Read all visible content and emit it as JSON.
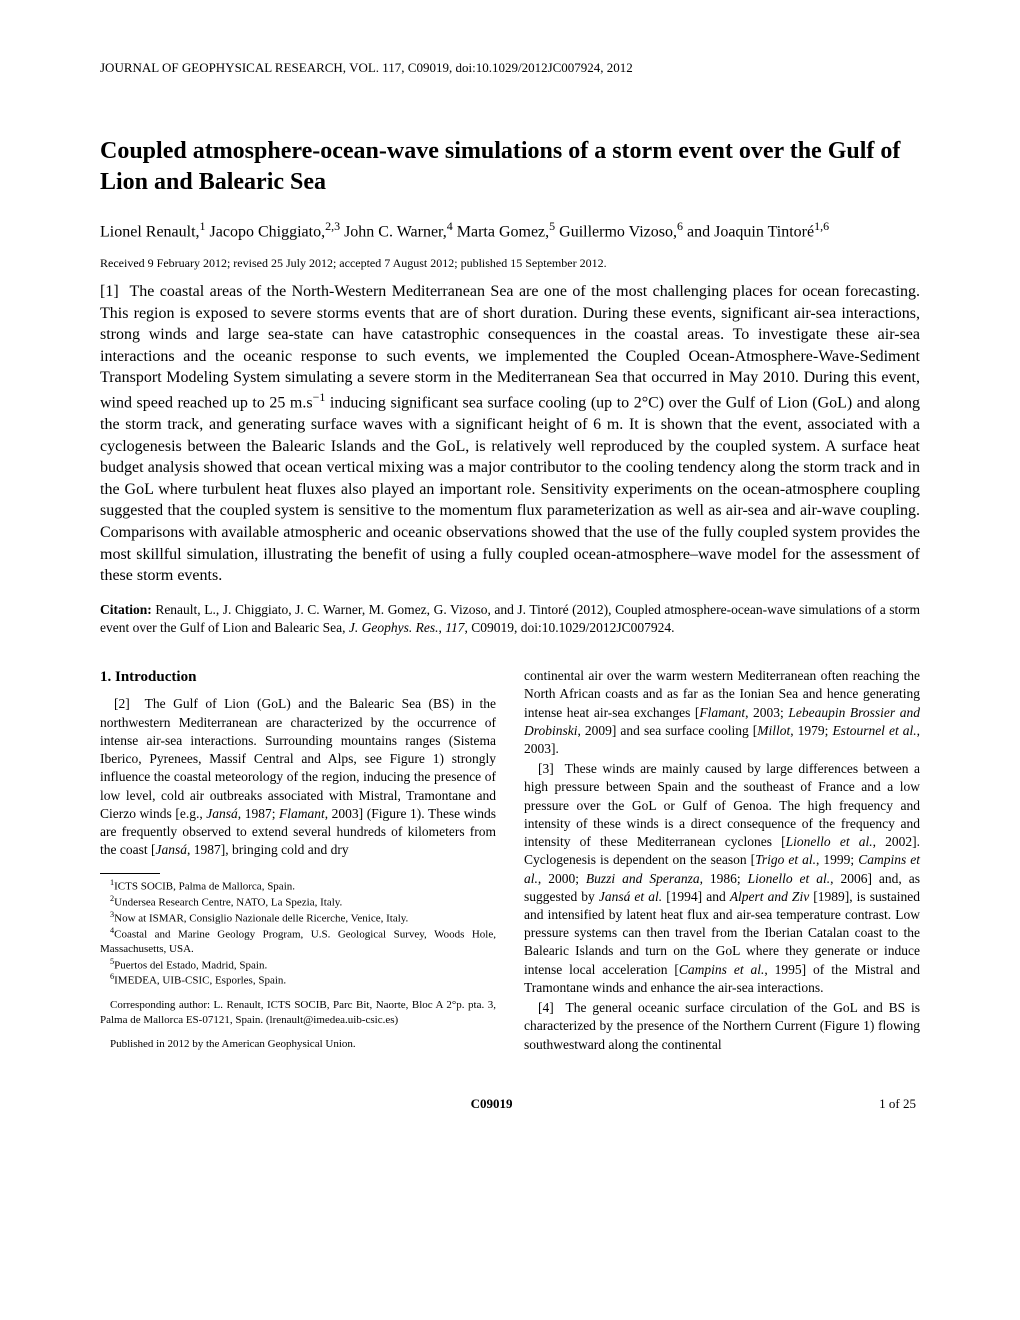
{
  "running_header": "JOURNAL OF GEOPHYSICAL RESEARCH, VOL. 117, C09019, doi:10.1029/2012JC007924, 2012",
  "title": "Coupled atmosphere-ocean-wave simulations of a storm event over the Gulf of Lion and Balearic Sea",
  "authors_html": "Lionel Renault,<sup>1</sup> Jacopo Chiggiato,<sup>2,3</sup> John C. Warner,<sup>4</sup> Marta Gomez,<sup>5</sup> Guillermo Vizoso,<sup>6</sup> and Joaquin Tintoré<sup>1,6</sup>",
  "dates": "Received 9 February 2012; revised 25 July 2012; accepted 7 August 2012; published 15 September 2012.",
  "abstract_html": "[1]&nbsp;&nbsp;The coastal areas of the North-Western Mediterranean Sea are one of the most challenging places for ocean forecasting. This region is exposed to severe storms events that are of short duration. During these events, significant air-sea interactions, strong winds and large sea-state can have catastrophic consequences in the coastal areas. To investigate these air-sea interactions and the oceanic response to such events, we implemented the Coupled Ocean-Atmosphere-Wave-Sediment Transport Modeling System simulating a severe storm in the Mediterranean Sea that occurred in May 2010. During this event, wind speed reached up to 25 m.s<sup>−1</sup> inducing significant sea surface cooling (up to 2°C) over the Gulf of Lion (GoL) and along the storm track, and generating surface waves with a significant height of 6 m. It is shown that the event, associated with a cyclogenesis between the Balearic Islands and the GoL, is relatively well reproduced by the coupled system. A surface heat budget analysis showed that ocean vertical mixing was a major contributor to the cooling tendency along the storm track and in the GoL where turbulent heat fluxes also played an important role. Sensitivity experiments on the ocean-atmosphere coupling suggested that the coupled system is sensitive to the momentum flux parameterization as well as air-sea and air-wave coupling. Comparisons with available atmospheric and oceanic observations showed that the use of the fully coupled system provides the most skillful simulation, illustrating the benefit of using a fully coupled ocean-atmosphere–wave model for the assessment of these storm events.",
  "citation_label": "Citation:",
  "citation_html": "Renault, L., J. Chiggiato, J. C. Warner, M. Gomez, G. Vizoso, and J. Tintoré (2012), Coupled atmosphere-ocean-wave simulations of a storm event over the Gulf of Lion and Balearic Sea, <span class=\"italic\">J. Geophys. Res.</span>, <span class=\"italic\">117</span>, C09019, doi:10.1029/2012JC007924.",
  "section1_heading": "1.   Introduction",
  "col_left_para1_html": "[2]&nbsp;&nbsp;The Gulf of Lion (GoL) and the Balearic Sea (BS) in the northwestern Mediterranean are characterized by the occurrence of intense air-sea interactions. Surrounding mountains ranges (Sistema Iberico, Pyrenees, Massif Central and Alps, see Figure 1) strongly influence the coastal meteorology of the region, inducing the presence of low level, cold air outbreaks associated with Mistral, Tramontane and Cierzo winds [e.g., <span class=\"italic\">Jansá</span>, 1987; <span class=\"italic\">Flamant</span>, 2003] (Figure 1). These winds are frequently observed to extend several hundreds of kilometers from the coast [<span class=\"italic\">Jansá</span>, 1987], bringing cold and dry",
  "affiliations": [
    "<sup>1</sup>ICTS SOCIB, Palma de Mallorca, Spain.",
    "<sup>2</sup>Undersea Research Centre, NATO, La Spezia, Italy.",
    "<sup>3</sup>Now at ISMAR, Consiglio Nazionale delle Ricerche, Venice, Italy.",
    "<sup>4</sup>Coastal and Marine Geology Program, U.S. Geological Survey, Woods Hole, Massachusetts, USA.",
    "<sup>5</sup>Puertos del Estado, Madrid, Spain.",
    "<sup>6</sup>IMEDEA, UIB-CSIC, Esporles, Spain."
  ],
  "corresponding": "Corresponding author: L. Renault, ICTS SOCIB, Parc Bit, Naorte, Bloc A 2°p. pta. 3, Palma de Mallorca ES-07121, Spain. (lrenault@imedea.uib-csic.es)",
  "pubnote": "Published in 2012 by the American Geophysical Union.",
  "col_right_para1_html": "continental air over the warm western Mediterranean often reaching the North African coasts and as far as the Ionian Sea and hence generating intense heat air-sea exchanges [<span class=\"italic\">Flamant</span>, 2003; <span class=\"italic\">Lebeaupin Brossier and Drobinski</span>, 2009] and sea surface cooling [<span class=\"italic\">Millot</span>, 1979; <span class=\"italic\">Estournel et al.</span>, 2003].",
  "col_right_para2_html": "[3]&nbsp;&nbsp;These winds are mainly caused by large differences between a high pressure between Spain and the southeast of France and a low pressure over the GoL or Gulf of Genoa. The high frequency and intensity of these winds is a direct consequence of the frequency and intensity of these Mediterranean cyclones [<span class=\"italic\">Lionello et al.</span>, 2002]. Cyclogenesis is dependent on the season [<span class=\"italic\">Trigo et al.</span>, 1999; <span class=\"italic\">Campins et al.</span>, 2000; <span class=\"italic\">Buzzi and Speranza</span>, 1986; <span class=\"italic\">Lionello et al.</span>, 2006] and, as suggested by <span class=\"italic\">Jansá et al.</span> [1994] and <span class=\"italic\">Alpert and Ziv</span> [1989], is sustained and intensified by latent heat flux and air-sea temperature contrast. Low pressure systems can then travel from the Iberian Catalan coast to the Balearic Islands and turn on the GoL where they generate or induce intense local acceleration [<span class=\"italic\">Campins et al.</span>, 1995] of the Mistral and Tramontane winds and enhance the air-sea interactions.",
  "col_right_para3_html": "[4]&nbsp;&nbsp;The general oceanic surface circulation of the GoL and BS is characterized by the presence of the Northern Current (Figure 1) flowing southwestward along the continental",
  "footer_center": "C09019",
  "footer_right": "1 of 25"
}
